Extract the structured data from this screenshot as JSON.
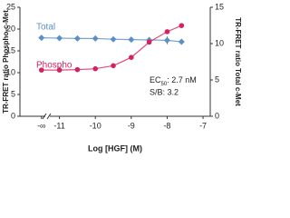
{
  "chart_data": {
    "type": "line",
    "x_label": "Log [HGF] (M)",
    "y_label": "TR-FRET ratio Phospho-c-Met",
    "y2_label": "TR-FRET ratio Total c-Met",
    "x": [
      -11.5,
      -11,
      -10.5,
      -10,
      -9.5,
      -9,
      -8.5,
      -8,
      -7.6
    ],
    "series": [
      {
        "name": "Total",
        "color": "#5b8fc9",
        "axis": "y2",
        "marker": "diamond",
        "values": [
          10.8,
          10.75,
          10.7,
          10.7,
          10.6,
          10.55,
          10.5,
          10.45,
          10.25
        ],
        "errors": [
          null,
          null,
          null,
          null,
          null,
          null,
          null,
          0.5,
          null
        ]
      },
      {
        "name": "Phospho",
        "color": "#d6205f",
        "marker": "circle",
        "values": [
          10.6,
          10.6,
          10.7,
          10.9,
          11.6,
          13.5,
          17.0,
          19.4,
          20.8
        ],
        "errors": [
          null,
          null,
          null,
          null,
          null,
          null,
          null,
          null,
          null
        ]
      }
    ],
    "annotations": [
      {
        "text": "EC",
        "sub": "50",
        "rest": ": 2.7 nM"
      },
      "S/B: 3.2"
    ],
    "xlim": [
      -12.1,
      -6.8
    ],
    "xticks": [
      {
        "value": -11.5,
        "label": "-∞"
      },
      -11,
      -10,
      -9,
      -8,
      -7
    ],
    "ylim": [
      0,
      25
    ],
    "yticks": [
      0,
      5,
      10,
      15,
      20,
      25
    ],
    "y2lim": [
      0,
      15
    ],
    "y2ticks": [
      0,
      5,
      10,
      15
    ]
  }
}
